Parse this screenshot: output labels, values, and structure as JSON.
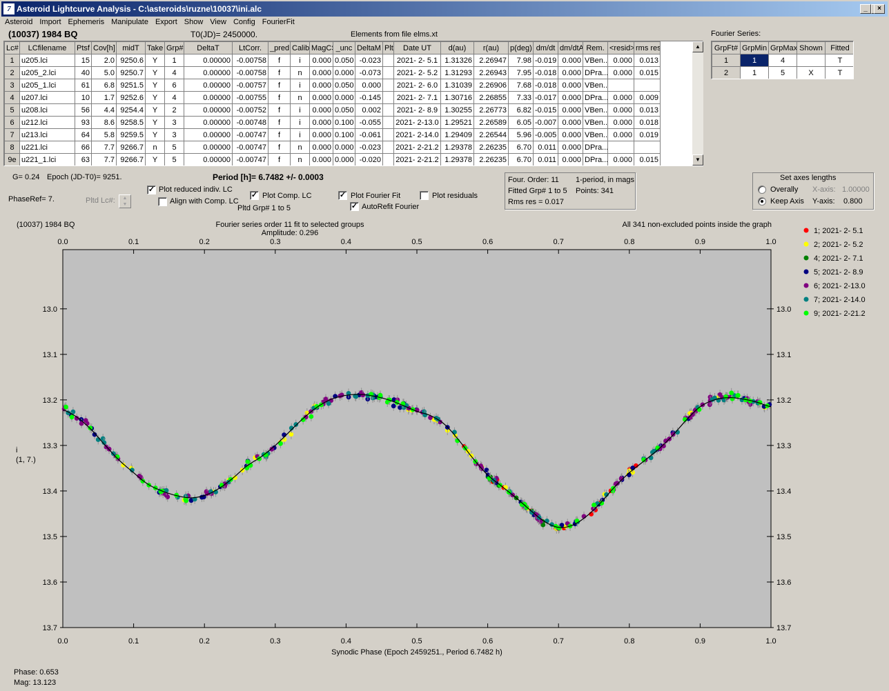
{
  "window": {
    "title": "Asteroid Lightcurve Analysis - C:\\asteroids\\ruzne\\10037\\ini.alc",
    "icon_label": "7",
    "min": "_",
    "max": "□",
    "close": "×"
  },
  "menu": [
    "Asteroid",
    "Import",
    "Ephemeris",
    "Manipulate",
    "Export",
    "Show",
    "View",
    "Config",
    "FourierFit"
  ],
  "header": {
    "asteroid": "(10037) 1984 BQ",
    "t0": "T0(JD)= 2450000.",
    "elements": "Elements from file elms.xt"
  },
  "lc_table": {
    "columns": [
      "Lc#",
      "LCfilename",
      "Ptsf",
      "Cov[h]",
      "midT",
      "Take",
      "Grp#",
      "DeltaT",
      "LtCorr.",
      "_pred.",
      "Calib.",
      "MagCS",
      "_unc",
      "DeltaM",
      "Plt",
      "Date UT",
      "d(au)",
      "r(au)",
      "p(deg)",
      "dm/dt",
      "dm/dtA",
      "Rem.",
      "<resid>",
      "rms res"
    ],
    "rows": [
      [
        "1",
        "u205.lci",
        "15",
        "2.0",
        "9250.6",
        "Y",
        "1",
        "0.00000",
        "-0.00758",
        "f",
        "i",
        "0.000",
        "0.050",
        "-0.023",
        "",
        "2021- 2- 5.1",
        "1.31326",
        "2.26947",
        "7.98",
        "-0.019",
        "0.000",
        "VBen...",
        "0.000",
        "0.013"
      ],
      [
        "2",
        "u205_2.lci",
        "40",
        "5.0",
        "9250.7",
        "Y",
        "4",
        "0.00000",
        "-0.00758",
        "f",
        "n",
        "0.000",
        "0.000",
        "-0.073",
        "",
        "2021- 2- 5.2",
        "1.31293",
        "2.26943",
        "7.95",
        "-0.018",
        "0.000",
        "DPra...",
        "0.000",
        "0.015"
      ],
      [
        "3",
        "u205_1.lci",
        "61",
        "6.8",
        "9251.5",
        "Y",
        "6",
        "0.00000",
        "-0.00757",
        "f",
        "i",
        "0.000",
        "0.050",
        "0.000",
        "",
        "2021- 2- 6.0",
        "1.31039",
        "2.26906",
        "7.68",
        "-0.018",
        "0.000",
        "VBen...",
        "",
        ""
      ],
      [
        "4",
        "u207.lci",
        "10",
        "1.7",
        "9252.6",
        "Y",
        "4",
        "0.00000",
        "-0.00755",
        "f",
        "n",
        "0.000",
        "0.000",
        "-0.145",
        "",
        "2021- 2- 7.1",
        "1.30716",
        "2.26855",
        "7.33",
        "-0.017",
        "0.000",
        "DPra...",
        "0.000",
        "0.009"
      ],
      [
        "5",
        "u208.lci",
        "56",
        "4.4",
        "9254.4",
        "Y",
        "2",
        "0.00000",
        "-0.00752",
        "f",
        "i",
        "0.000",
        "0.050",
        "0.002",
        "",
        "2021- 2- 8.9",
        "1.30255",
        "2.26773",
        "6.82",
        "-0.015",
        "0.000",
        "VBen...",
        "0.000",
        "0.013"
      ],
      [
        "6",
        "u212.lci",
        "93",
        "8.6",
        "9258.5",
        "Y",
        "3",
        "0.00000",
        "-0.00748",
        "f",
        "i",
        "0.000",
        "0.100",
        "-0.055",
        "",
        "2021- 2-13.0",
        "1.29521",
        "2.26589",
        "6.05",
        "-0.007",
        "0.000",
        "VBen...",
        "0.000",
        "0.018"
      ],
      [
        "7",
        "u213.lci",
        "64",
        "5.8",
        "9259.5",
        "Y",
        "3",
        "0.00000",
        "-0.00747",
        "f",
        "i",
        "0.000",
        "0.100",
        "-0.061",
        "",
        "2021- 2-14.0",
        "1.29409",
        "2.26544",
        "5.96",
        "-0.005",
        "0.000",
        "VBen...",
        "0.000",
        "0.019"
      ],
      [
        "8",
        "u221.lci",
        "66",
        "7.7",
        "9266.7",
        "n",
        "5",
        "0.00000",
        "-0.00747",
        "f",
        "n",
        "0.000",
        "0.000",
        "-0.023",
        "",
        "2021- 2-21.2",
        "1.29378",
        "2.26235",
        "6.70",
        "0.011",
        "0.000",
        "DPra...",
        "",
        ""
      ],
      [
        "9e",
        "u221_1.lci",
        "63",
        "7.7",
        "9266.7",
        "Y",
        "5",
        "0.00000",
        "-0.00747",
        "f",
        "n",
        "0.000",
        "0.000",
        "-0.020",
        "",
        "2021- 2-21.2",
        "1.29378",
        "2.26235",
        "6.70",
        "0.011",
        "0.000",
        "DPra...",
        "0.000",
        "0.015"
      ]
    ]
  },
  "fourier_series": {
    "label": "Fourier Series:",
    "columns": [
      "GrpFt#",
      "GrpMin",
      "GrpMax",
      "Shown",
      "Fitted"
    ],
    "rows": [
      [
        "1",
        "1",
        "4",
        "",
        "T"
      ],
      [
        "2",
        "1",
        "5",
        "X",
        "T"
      ]
    ]
  },
  "controls": {
    "g": "G= 0.24",
    "epoch": "Epoch (JD-T0)= 9251.",
    "period": "Period [h]= 6.7482 +/- 0.0003",
    "phaseref": "PhaseRef= 7.",
    "pltd_lc": "Pltd Lc#:",
    "plot_reduced": "Plot reduced indiv. LC",
    "align_comp": "Align with Comp. LC",
    "plot_comp": "Plot Comp. LC",
    "pltd_grp": "Pltd Grp#  1   to   5",
    "plot_fourier": "Plot Fourier Fit",
    "autorefit": "AutoRefit Fourier",
    "plot_resid": "Plot residuals",
    "info1a": "Four. Order: 11",
    "info1b": "1-period, in mags",
    "info2a": "Fitted Grp# 1 to 5",
    "info2b": "Points: 341",
    "info3": "Rms res      = 0.017",
    "axes_title": "Set axes lengths",
    "overall": "Overally",
    "keep_axis": "Keep Axis",
    "xaxis_lbl": "X-axis:",
    "xaxis_val": "1.00000",
    "yaxis_lbl": "Y-axis:",
    "yaxis_val": "0.800",
    "phase": "Phase:  0.653",
    "mag": "Mag:   13.123"
  },
  "plot": {
    "header_left": "(10037) 1984 BQ",
    "header_center1": "Fourier series order 11 fit to selected groups",
    "header_center2": "Amplitude: 0.296",
    "header_right": "All 341 non-excluded points inside the graph",
    "ylabel1": "i",
    "ylabel2": "(1, 7.)",
    "xlabel": "Synodic Phase (Epoch 2459251., Period 6.7482 h)",
    "bg": "#c0c0c0"
  },
  "chart_data": {
    "type": "scatter",
    "xlim": [
      0,
      1
    ],
    "ylim": [
      13.7,
      12.9
    ],
    "xticks": [
      "0.0",
      "0.1",
      "0.2",
      "0.3",
      "0.4",
      "0.5",
      "0.6",
      "0.7",
      "0.8",
      "0.9",
      "1.0"
    ],
    "yticks": [
      "13.0",
      "13.1",
      "13.2",
      "13.3",
      "13.4",
      "13.5",
      "13.6",
      "13.7"
    ],
    "fit_curve": [
      [
        0,
        13.222
      ],
      [
        0.02,
        13.238
      ],
      [
        0.04,
        13.265
      ],
      [
        0.06,
        13.3
      ],
      [
        0.08,
        13.333
      ],
      [
        0.1,
        13.36
      ],
      [
        0.12,
        13.385
      ],
      [
        0.14,
        13.4
      ],
      [
        0.16,
        13.41
      ],
      [
        0.18,
        13.415
      ],
      [
        0.2,
        13.41
      ],
      [
        0.22,
        13.395
      ],
      [
        0.24,
        13.372
      ],
      [
        0.26,
        13.345
      ],
      [
        0.28,
        13.325
      ],
      [
        0.3,
        13.3
      ],
      [
        0.32,
        13.27
      ],
      [
        0.34,
        13.24
      ],
      [
        0.36,
        13.215
      ],
      [
        0.38,
        13.198
      ],
      [
        0.4,
        13.19
      ],
      [
        0.42,
        13.188
      ],
      [
        0.44,
        13.192
      ],
      [
        0.46,
        13.2
      ],
      [
        0.48,
        13.212
      ],
      [
        0.5,
        13.225
      ],
      [
        0.52,
        13.235
      ],
      [
        0.54,
        13.255
      ],
      [
        0.56,
        13.29
      ],
      [
        0.58,
        13.33
      ],
      [
        0.6,
        13.365
      ],
      [
        0.62,
        13.39
      ],
      [
        0.64,
        13.415
      ],
      [
        0.66,
        13.442
      ],
      [
        0.68,
        13.467
      ],
      [
        0.7,
        13.48
      ],
      [
        0.72,
        13.475
      ],
      [
        0.74,
        13.455
      ],
      [
        0.76,
        13.425
      ],
      [
        0.78,
        13.39
      ],
      [
        0.8,
        13.36
      ],
      [
        0.82,
        13.335
      ],
      [
        0.84,
        13.31
      ],
      [
        0.86,
        13.28
      ],
      [
        0.88,
        13.245
      ],
      [
        0.9,
        13.215
      ],
      [
        0.92,
        13.2
      ],
      [
        0.94,
        13.195
      ],
      [
        0.96,
        13.198
      ],
      [
        0.98,
        13.205
      ],
      [
        1.0,
        13.215
      ]
    ],
    "series": [
      {
        "name": "1; 2021- 2- 5.1",
        "color": "#ff0000",
        "x_range": [
          0.53,
          0.86
        ]
      },
      {
        "name": "2; 2021- 2- 5.2",
        "color": "#ffff00",
        "x_range": [
          0.0,
          1.0
        ]
      },
      {
        "name": "4; 2021- 2- 7.1",
        "color": "#008000",
        "x_range": [
          0.6,
          0.68
        ]
      },
      {
        "name": "5; 2021- 2- 8.9",
        "color": "#000080",
        "x_range": [
          0.0,
          1.0
        ]
      },
      {
        "name": "6; 2021- 2-13.0",
        "color": "#800080",
        "x_range": [
          0.0,
          1.0
        ]
      },
      {
        "name": "7; 2021- 2-14.0",
        "color": "#008080",
        "x_range": [
          0.0,
          1.0
        ]
      },
      {
        "name": "9; 2021- 2-21.2",
        "color": "#00ff00",
        "x_range": [
          0.0,
          1.0
        ]
      }
    ]
  }
}
